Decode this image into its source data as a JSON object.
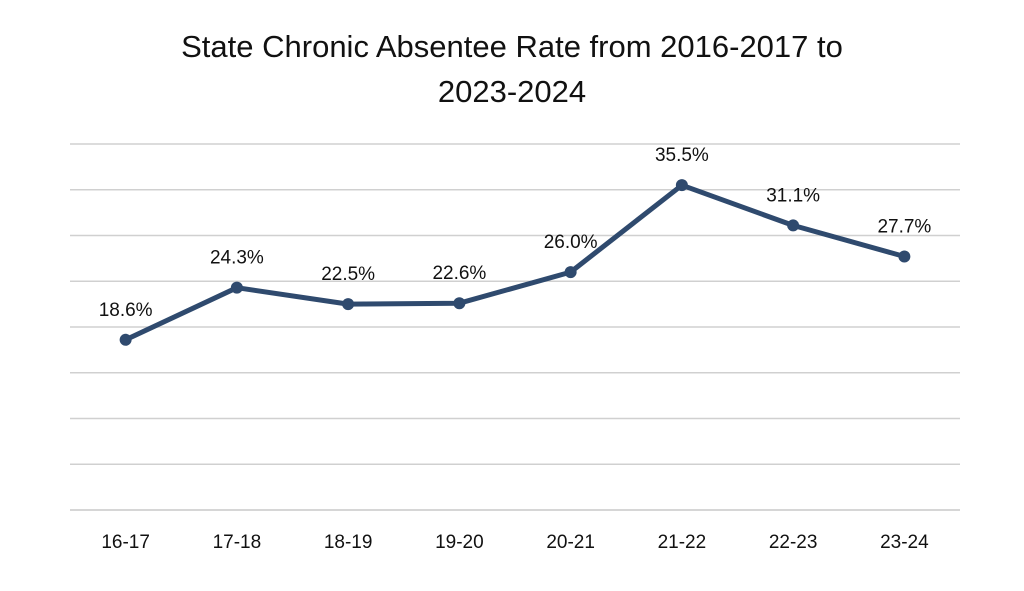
{
  "chart_data": {
    "type": "line",
    "title": "State Chronic Absentee Rate from 2016-2017 to 2023-2024",
    "title_lines": [
      "State Chronic Absentee Rate from 2016-2017 to",
      "2023-2024"
    ],
    "xlabel": "",
    "ylabel": "",
    "categories": [
      "16-17",
      "17-18",
      "18-19",
      "19-20",
      "20-21",
      "21-22",
      "22-23",
      "23-24"
    ],
    "series": [
      {
        "values": [
          18.6,
          24.3,
          22.5,
          22.6,
          26.0,
          35.5,
          31.1,
          27.7
        ],
        "labels": [
          "18.6%",
          "24.3%",
          "22.5%",
          "22.6%",
          "26.0%",
          "35.5%",
          "31.1%",
          "27.7%"
        ],
        "color": "#2f4a6e"
      }
    ],
    "ylim": [
      0,
      40
    ],
    "grid": true,
    "y_tick_labels_shown": false,
    "legend": "none",
    "gridline_color": "#d0d0d0"
  }
}
